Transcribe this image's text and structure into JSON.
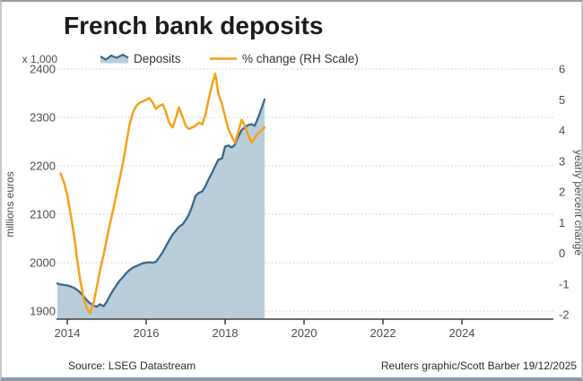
{
  "window": {
    "accent_colors": {
      "deposits_line": "#3A688C",
      "deposits_fill": "#BACDDB",
      "pct_line": "#F7A11A",
      "grid": "#CBCBCB",
      "axis": "#3F3F3F"
    }
  },
  "footer": {
    "source": "Source: LSEG Datastream",
    "credit": "Reuters graphic/Scott Barber 19/12/2025"
  },
  "chart_data": {
    "type": "area+line",
    "title": "French bank deposits",
    "legend_position": "top",
    "grid": "horizontal-dotted",
    "x_axis": {
      "ticks": [
        "2014",
        "2016",
        "2018",
        "2020",
        "2022",
        "2024"
      ],
      "tick_values": [
        2014,
        2016,
        2018,
        2020,
        2022,
        2024
      ],
      "range": [
        2013.72,
        2026.3
      ]
    },
    "left_axis": {
      "unit": "x 1,000",
      "label": "millions euros",
      "ticks": [
        "2400",
        "2300",
        "2200",
        "2100",
        "2000",
        "1900"
      ],
      "tick_values": [
        2400,
        2300,
        2200,
        2100,
        2000,
        1900
      ],
      "range": [
        1883,
        2400
      ]
    },
    "right_axis": {
      "label": "yearly percent change",
      "ticks": [
        "6",
        "5",
        "4",
        "3",
        "2",
        "1",
        "0",
        "-1",
        "-2"
      ],
      "tick_values": [
        6,
        5,
        4,
        3,
        2,
        1,
        0,
        -1,
        -2
      ],
      "range": [
        -2.15,
        6
      ]
    },
    "series": [
      {
        "name": "Deposits",
        "type": "area",
        "axis": "left",
        "color": "#3A688C",
        "fill": "#BACDDB",
        "points": [
          [
            2013.75,
            1957
          ],
          [
            2013.83,
            1955
          ],
          [
            2013.92,
            1954
          ],
          [
            2014.0,
            1953
          ],
          [
            2014.08,
            1951
          ],
          [
            2014.17,
            1948
          ],
          [
            2014.25,
            1944
          ],
          [
            2014.33,
            1938
          ],
          [
            2014.42,
            1930
          ],
          [
            2014.5,
            1922
          ],
          [
            2014.58,
            1916
          ],
          [
            2014.67,
            1911
          ],
          [
            2014.75,
            1909
          ],
          [
            2014.83,
            1914
          ],
          [
            2014.92,
            1910
          ],
          [
            2015.0,
            1919
          ],
          [
            2015.08,
            1932
          ],
          [
            2015.17,
            1944
          ],
          [
            2015.25,
            1954
          ],
          [
            2015.33,
            1963
          ],
          [
            2015.42,
            1971
          ],
          [
            2015.5,
            1979
          ],
          [
            2015.58,
            1985
          ],
          [
            2015.67,
            1990
          ],
          [
            2015.75,
            1993
          ],
          [
            2015.83,
            1996
          ],
          [
            2015.92,
            1999
          ],
          [
            2016.0,
            2000
          ],
          [
            2016.08,
            2001
          ],
          [
            2016.17,
            2000
          ],
          [
            2016.25,
            2002
          ],
          [
            2016.33,
            2011
          ],
          [
            2016.42,
            2022
          ],
          [
            2016.5,
            2034
          ],
          [
            2016.58,
            2046
          ],
          [
            2016.67,
            2058
          ],
          [
            2016.75,
            2066
          ],
          [
            2016.83,
            2074
          ],
          [
            2016.92,
            2079
          ],
          [
            2017.0,
            2088
          ],
          [
            2017.08,
            2099
          ],
          [
            2017.17,
            2118
          ],
          [
            2017.25,
            2138
          ],
          [
            2017.33,
            2144
          ],
          [
            2017.42,
            2147
          ],
          [
            2017.5,
            2158
          ],
          [
            2017.58,
            2172
          ],
          [
            2017.67,
            2186
          ],
          [
            2017.75,
            2200
          ],
          [
            2017.83,
            2213
          ],
          [
            2017.92,
            2215
          ],
          [
            2018.0,
            2240
          ],
          [
            2018.08,
            2242
          ],
          [
            2018.17,
            2238
          ],
          [
            2018.25,
            2244
          ],
          [
            2018.33,
            2260
          ],
          [
            2018.42,
            2274
          ],
          [
            2018.5,
            2280
          ],
          [
            2018.58,
            2284
          ],
          [
            2018.67,
            2286
          ],
          [
            2018.75,
            2283
          ],
          [
            2018.83,
            2298
          ],
          [
            2018.92,
            2318
          ],
          [
            2019.0,
            2337
          ]
        ]
      },
      {
        "name": "% change (RH Scale)",
        "type": "line",
        "axis": "right",
        "color": "#F7A11A",
        "points": [
          [
            2013.83,
            2.6
          ],
          [
            2013.92,
            2.3
          ],
          [
            2014.0,
            1.9
          ],
          [
            2014.08,
            1.3
          ],
          [
            2014.17,
            0.6
          ],
          [
            2014.25,
            -0.2
          ],
          [
            2014.33,
            -0.9
          ],
          [
            2014.42,
            -1.5
          ],
          [
            2014.5,
            -1.8
          ],
          [
            2014.58,
            -1.95
          ],
          [
            2014.67,
            -1.6
          ],
          [
            2014.75,
            -1.1
          ],
          [
            2014.83,
            -0.55
          ],
          [
            2014.92,
            -0.05
          ],
          [
            2015.0,
            0.45
          ],
          [
            2015.08,
            0.95
          ],
          [
            2015.17,
            1.45
          ],
          [
            2015.25,
            1.95
          ],
          [
            2015.33,
            2.45
          ],
          [
            2015.42,
            3.0
          ],
          [
            2015.5,
            3.6
          ],
          [
            2015.58,
            4.2
          ],
          [
            2015.67,
            4.6
          ],
          [
            2015.75,
            4.8
          ],
          [
            2015.83,
            4.9
          ],
          [
            2015.92,
            4.95
          ],
          [
            2016.0,
            5.0
          ],
          [
            2016.08,
            5.05
          ],
          [
            2016.17,
            4.9
          ],
          [
            2016.25,
            4.7
          ],
          [
            2016.33,
            4.8
          ],
          [
            2016.42,
            4.85
          ],
          [
            2016.5,
            4.6
          ],
          [
            2016.58,
            4.25
          ],
          [
            2016.67,
            4.1
          ],
          [
            2016.75,
            4.4
          ],
          [
            2016.83,
            4.75
          ],
          [
            2016.92,
            4.45
          ],
          [
            2017.0,
            4.15
          ],
          [
            2017.08,
            4.05
          ],
          [
            2017.17,
            4.1
          ],
          [
            2017.25,
            4.15
          ],
          [
            2017.33,
            4.25
          ],
          [
            2017.42,
            4.2
          ],
          [
            2017.5,
            4.5
          ],
          [
            2017.58,
            5.0
          ],
          [
            2017.67,
            5.5
          ],
          [
            2017.75,
            5.85
          ],
          [
            2017.83,
            5.2
          ],
          [
            2017.92,
            4.85
          ],
          [
            2018.0,
            4.45
          ],
          [
            2018.08,
            4.05
          ],
          [
            2018.17,
            3.8
          ],
          [
            2018.25,
            3.6
          ],
          [
            2018.33,
            3.95
          ],
          [
            2018.42,
            4.35
          ],
          [
            2018.5,
            4.15
          ],
          [
            2018.58,
            3.85
          ],
          [
            2018.67,
            3.6
          ],
          [
            2018.75,
            3.75
          ],
          [
            2018.83,
            3.9
          ],
          [
            2018.92,
            4.0
          ],
          [
            2019.0,
            4.1
          ]
        ]
      }
    ]
  }
}
